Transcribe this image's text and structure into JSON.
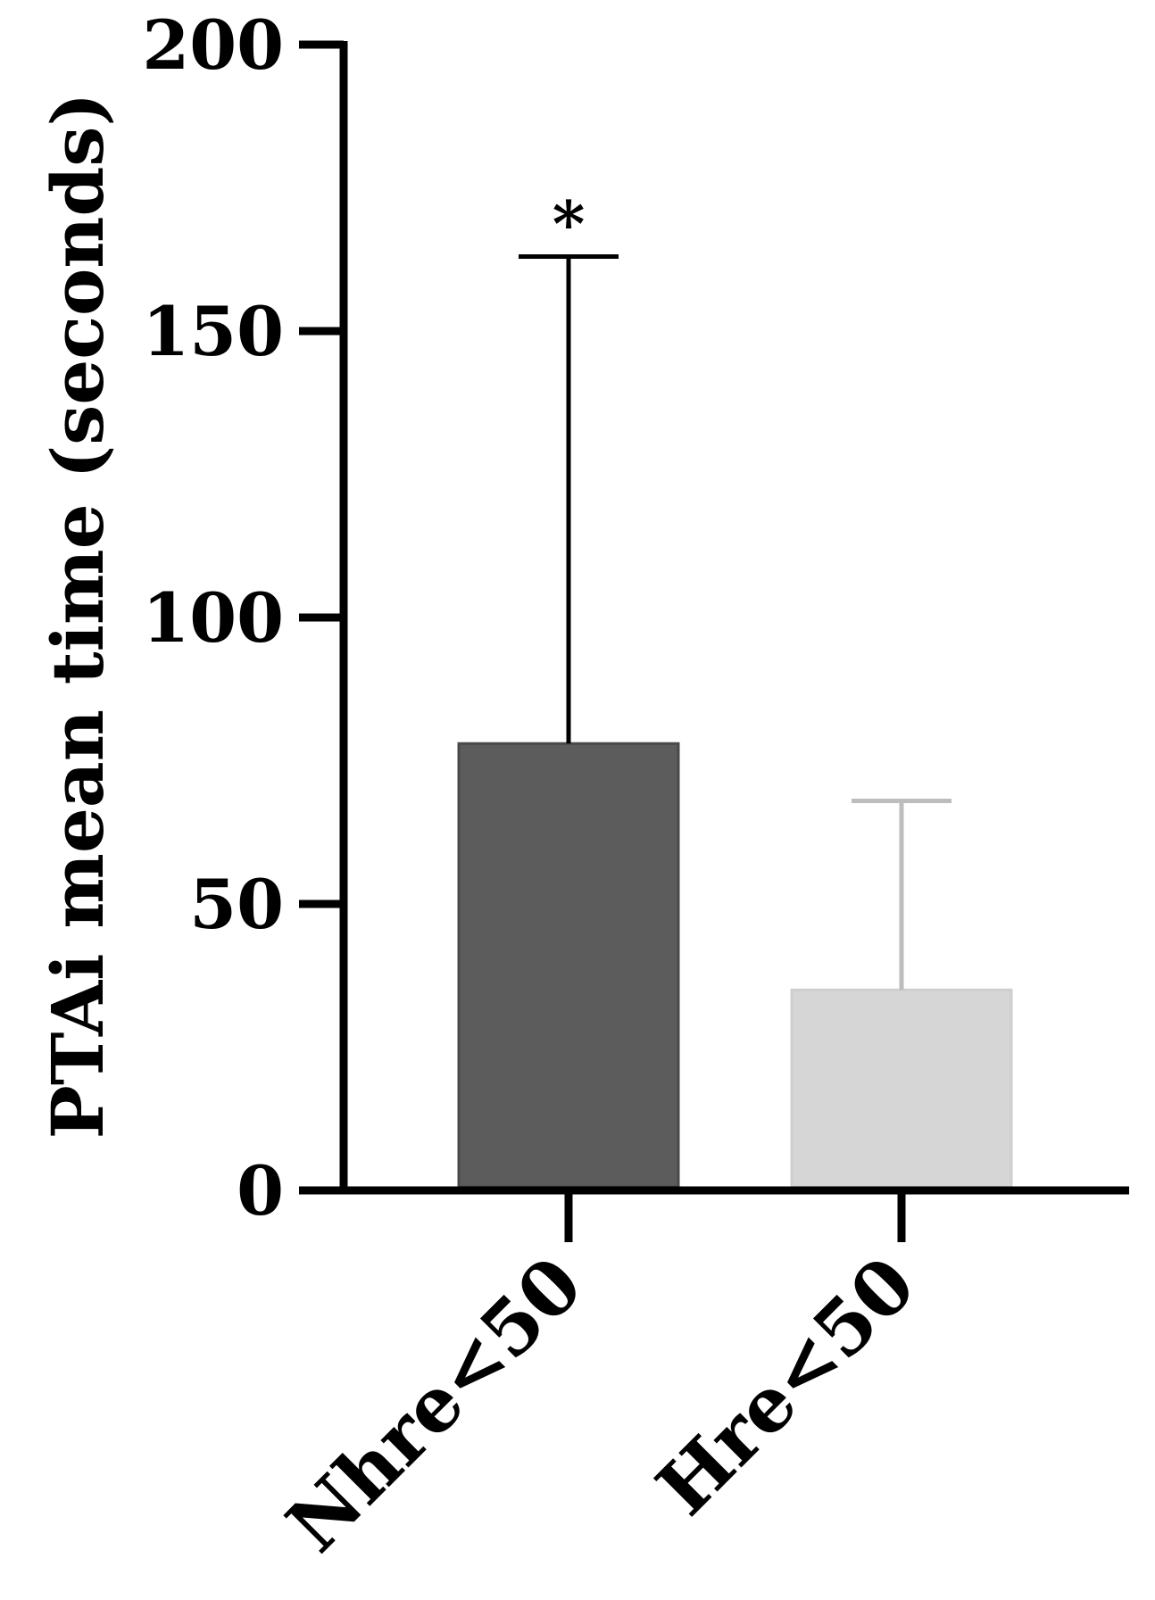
{
  "chart_data": {
    "type": "bar",
    "title": "",
    "xlabel": "",
    "ylabel": "PTAi mean time (seconds)",
    "ylim": [
      0,
      200
    ],
    "yticks": [
      0,
      50,
      100,
      150,
      200
    ],
    "categories": [
      "Nhre<50",
      "Hre<50"
    ],
    "series": [
      {
        "values": [
          78,
          35
        ],
        "error_upper": [
          163,
          68
        ],
        "colors": [
          "#5c5c5c",
          "#d6d6d6"
        ],
        "error_colors": [
          "#000000",
          "#bdbdbd"
        ]
      }
    ],
    "annotations": [
      {
        "category": "Nhre<50",
        "text": "*"
      }
    ],
    "grid": false,
    "legend": "none"
  }
}
